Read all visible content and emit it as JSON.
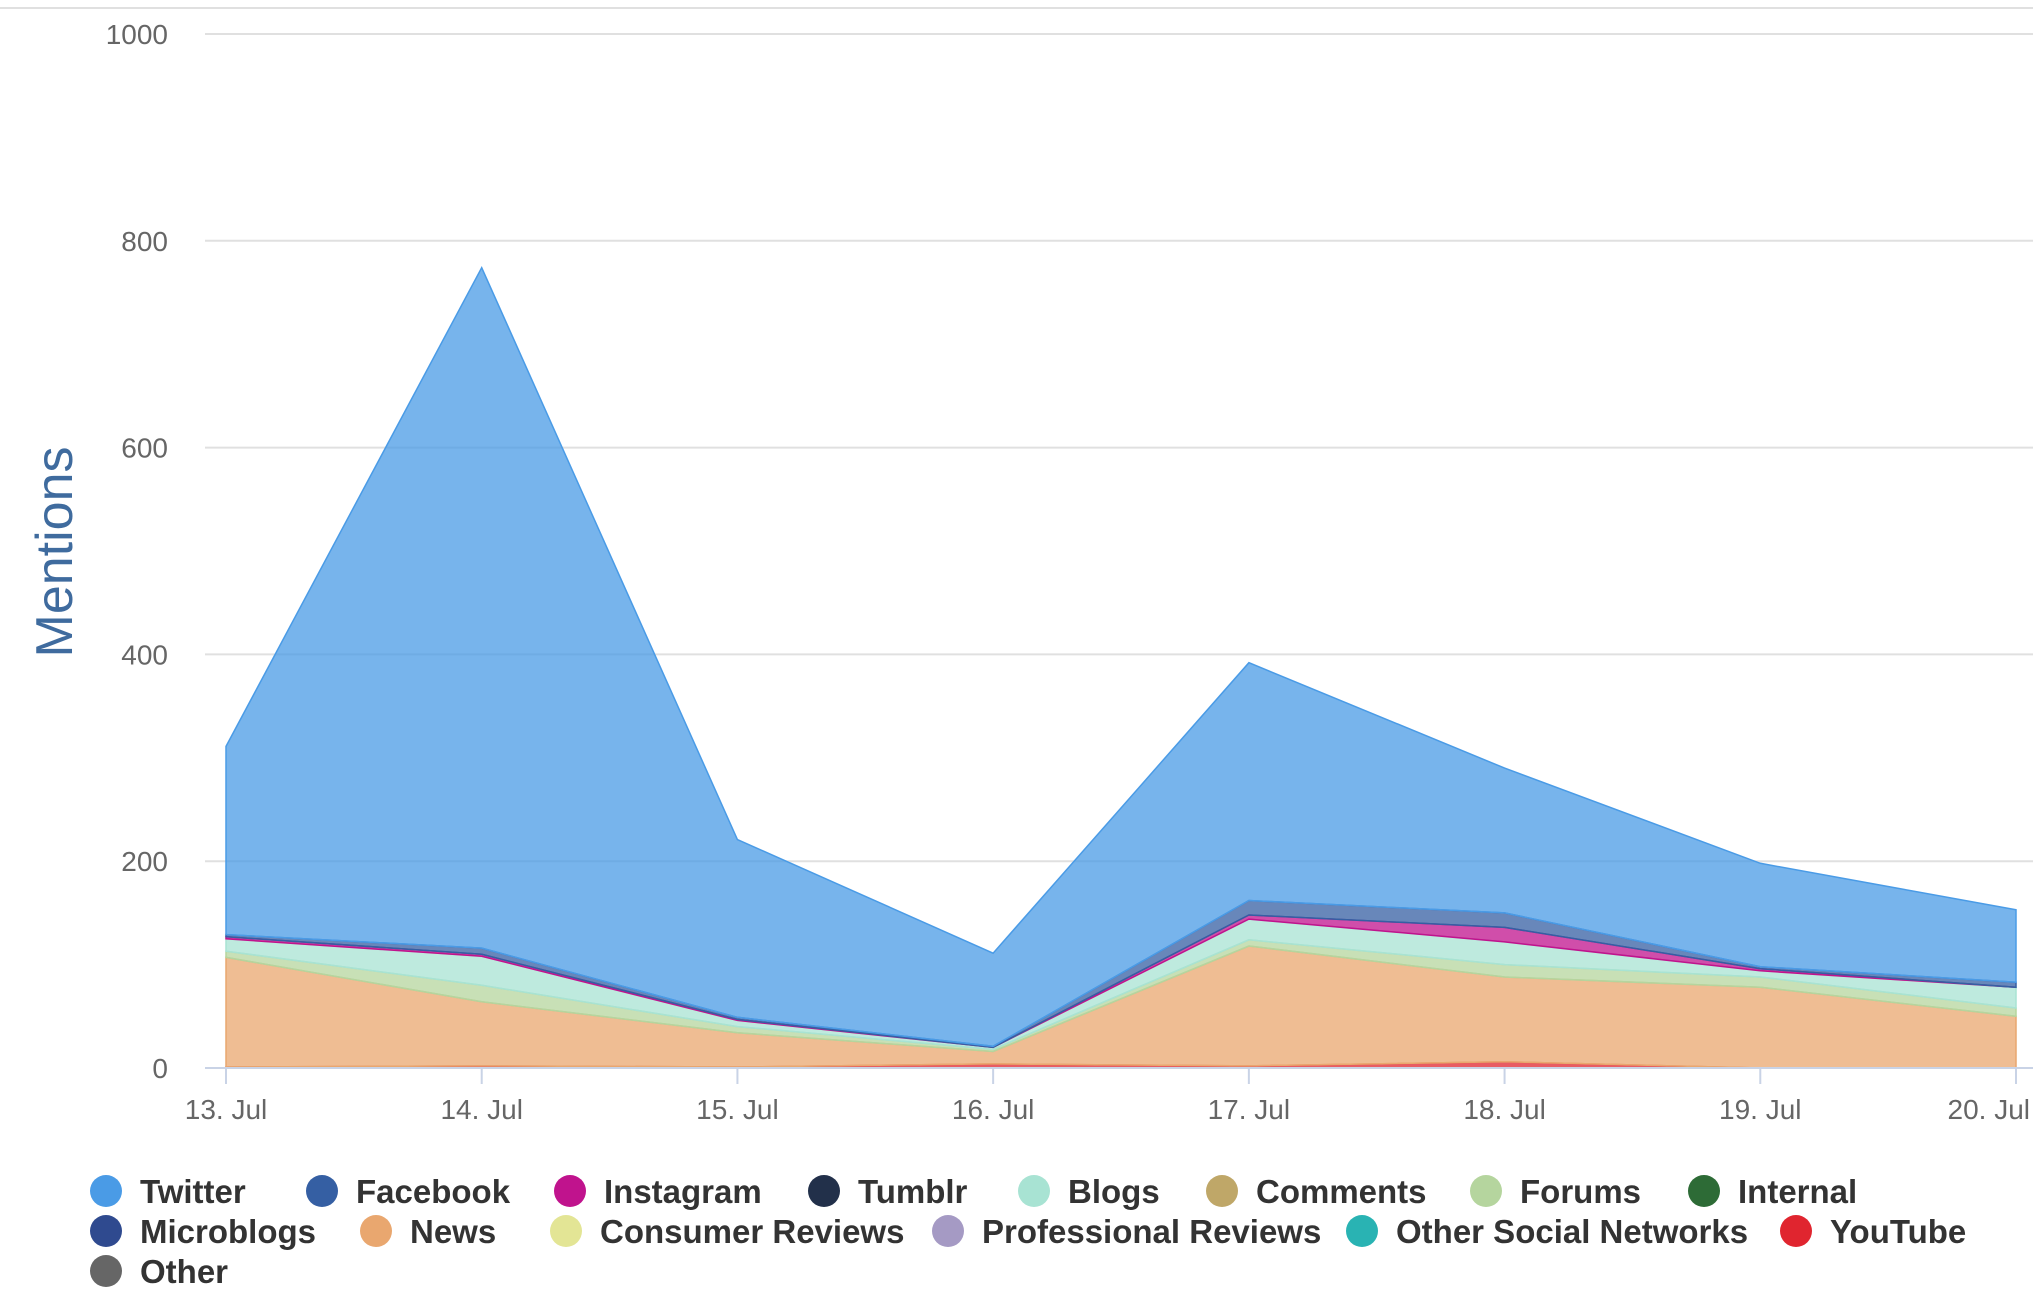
{
  "chart_data": {
    "type": "area",
    "stacked": true,
    "title": "",
    "xlabel": "",
    "ylabel": "Mentions",
    "ylim": [
      0,
      1000
    ],
    "yticks": [
      "0",
      "200",
      "400",
      "600",
      "800",
      "1000"
    ],
    "categories": [
      "13. Jul",
      "14. Jul",
      "15. Jul",
      "16. Jul",
      "17. Jul",
      "18. Jul",
      "19. Jul",
      "20. Jul"
    ],
    "grid": true,
    "legend_position": "bottom-left",
    "series": [
      {
        "name": "Twitter",
        "color": "#4a9be6",
        "values": [
          182,
          658,
          172,
          90,
          230,
          140,
          100,
          70
        ]
      },
      {
        "name": "Facebook",
        "color": "#355fa3",
        "values": [
          2,
          6,
          2,
          1,
          14,
          14,
          2,
          5
        ]
      },
      {
        "name": "Instagram",
        "color": "#c0138d",
        "values": [
          2,
          2,
          1,
          0,
          4,
          14,
          2,
          0
        ]
      },
      {
        "name": "Tumblr",
        "color": "#22304a",
        "values": [
          0,
          0,
          0,
          0,
          0,
          0,
          0,
          0
        ]
      },
      {
        "name": "Blogs",
        "color": "#a8e3d3",
        "values": [
          12,
          28,
          6,
          2,
          20,
          22,
          6,
          20
        ]
      },
      {
        "name": "Comments",
        "color": "#bfa768",
        "values": [
          0,
          0,
          0,
          0,
          0,
          0,
          0,
          0
        ]
      },
      {
        "name": "Forums",
        "color": "#b5d59e",
        "values": [
          6,
          16,
          6,
          2,
          6,
          12,
          10,
          8
        ]
      },
      {
        "name": "Internal",
        "color": "#2d6b36",
        "values": [
          0,
          0,
          0,
          0,
          0,
          0,
          0,
          0
        ]
      },
      {
        "name": "Microblogs",
        "color": "#2f4a8f",
        "values": [
          0,
          0,
          0,
          0,
          0,
          0,
          0,
          0
        ]
      },
      {
        "name": "News",
        "color": "#e9a76f",
        "values": [
          106,
          62,
          33,
          12,
          116,
          82,
          78,
          50
        ]
      },
      {
        "name": "Consumer Reviews",
        "color": "#e3e595",
        "values": [
          0,
          0,
          0,
          0,
          0,
          0,
          0,
          0
        ]
      },
      {
        "name": "Professional Reviews",
        "color": "#a59ac4",
        "values": [
          0,
          0,
          0,
          0,
          0,
          0,
          0,
          0
        ]
      },
      {
        "name": "Other Social Networks",
        "color": "#29b3b3",
        "values": [
          0,
          0,
          0,
          0,
          0,
          0,
          0,
          0
        ]
      },
      {
        "name": "YouTube",
        "color": "#e0252f",
        "values": [
          1,
          2,
          1,
          4,
          2,
          6,
          0,
          0
        ]
      },
      {
        "name": "Other",
        "color": "#666666",
        "values": [
          0,
          0,
          0,
          0,
          0,
          0,
          0,
          0
        ]
      }
    ],
    "stack_order_bottom_to_top": [
      "YouTube",
      "News",
      "Forums",
      "Blogs",
      "Instagram",
      "Facebook",
      "Twitter"
    ],
    "colors": {
      "grid": "#e0e0e0",
      "axis": "#c9d3e6",
      "tick_text": "#666666",
      "ylabel": "#3f6b9e"
    }
  }
}
